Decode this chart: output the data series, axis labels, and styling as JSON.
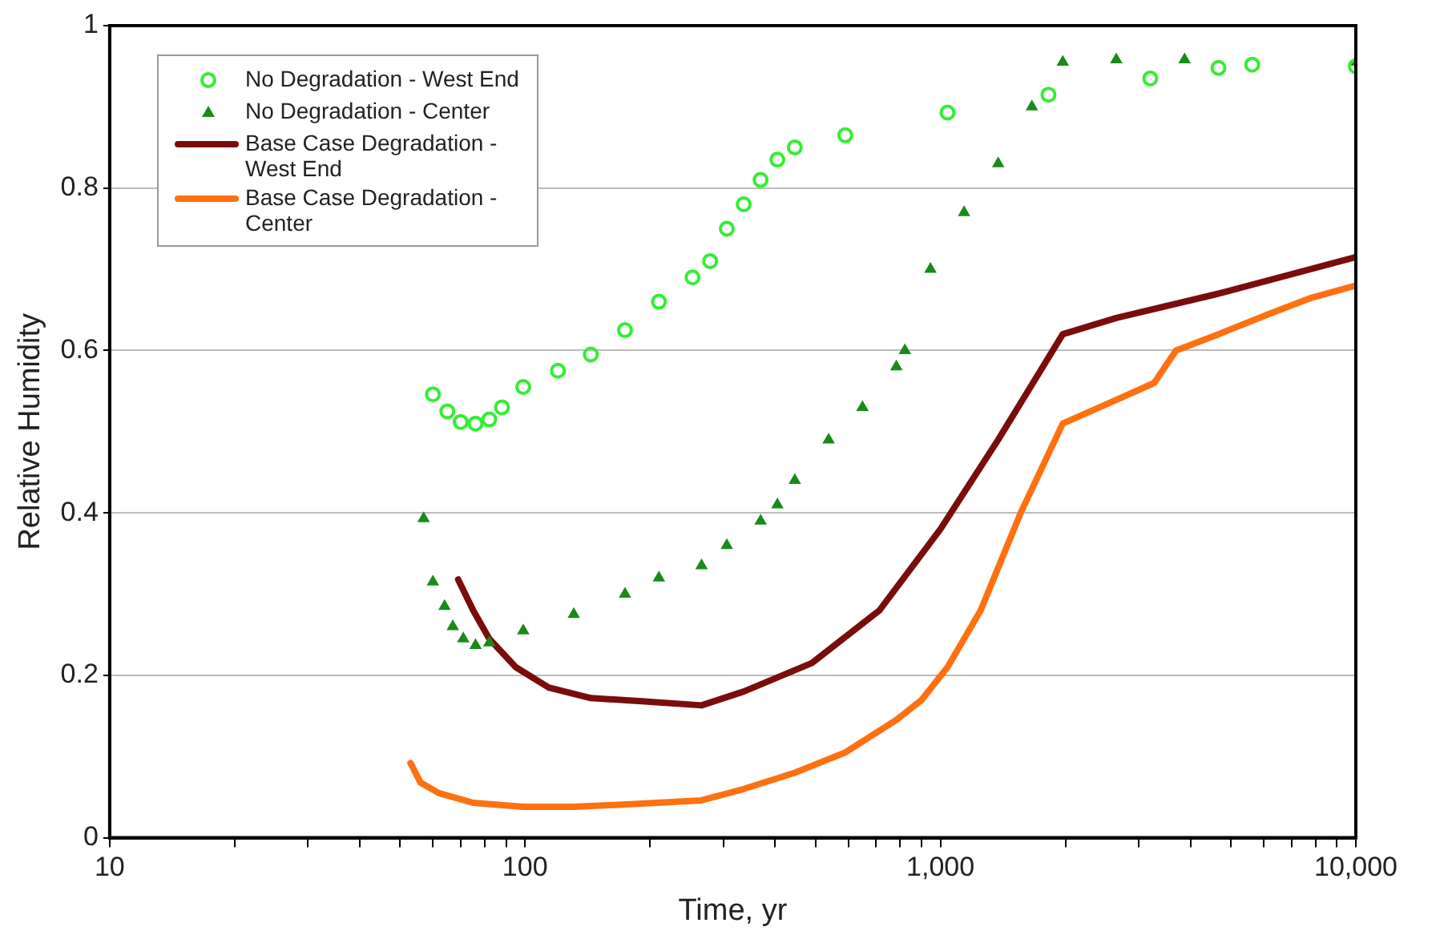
{
  "chart_data": {
    "type": "line",
    "xlabel": "Time, yr",
    "ylabel": "Relative Humidity",
    "log": "x",
    "grid": "y",
    "legend": "top left",
    "xlim": [
      10,
      10000
    ],
    "xticks": [
      10,
      {
        "value": 20,
        "label": null
      },
      {
        "value": 30,
        "label": null
      },
      {
        "value": 40,
        "label": null
      },
      {
        "value": 50,
        "label": null
      },
      {
        "value": 60,
        "label": null
      },
      {
        "value": 70,
        "label": null
      },
      {
        "value": 80,
        "label": null
      },
      {
        "value": 90,
        "label": null
      },
      100,
      {
        "value": 200,
        "label": null
      },
      {
        "value": 300,
        "label": null
      },
      {
        "value": 400,
        "label": null
      },
      {
        "value": 500,
        "label": null
      },
      {
        "value": 600,
        "label": null
      },
      {
        "value": 700,
        "label": null
      },
      {
        "value": 800,
        "label": null
      },
      {
        "value": 900,
        "label": null
      },
      {
        "value": 1000,
        "label": "1,000"
      },
      {
        "value": 2000,
        "label": null
      },
      {
        "value": 3000,
        "label": null
      },
      {
        "value": 4000,
        "label": null
      },
      {
        "value": 5000,
        "label": null
      },
      {
        "value": 6000,
        "label": null
      },
      {
        "value": 7000,
        "label": null
      },
      {
        "value": 8000,
        "label": null
      },
      {
        "value": 9000,
        "label": null
      },
      {
        "value": 10000,
        "label": "10,000"
      }
    ],
    "ylim": [
      0,
      1
    ],
    "yticks": [
      0,
      0.2,
      0.4,
      0.6,
      0.8,
      1
    ],
    "series": [
      {
        "name": "No Degradation - West End",
        "type": "scatter",
        "marker": "circle",
        "color": "#33ee33",
        "x": [
          60,
          65,
          70,
          76,
          82,
          88,
          99,
          120,
          144,
          174,
          210,
          253,
          279,
          306,
          336,
          369,
          405,
          446,
          590,
          1040,
          1820,
          3200,
          4670,
          5630,
          10000
        ],
        "values": [
          0.546,
          0.525,
          0.512,
          0.51,
          0.515,
          0.53,
          0.555,
          0.575,
          0.595,
          0.625,
          0.66,
          0.69,
          0.71,
          0.75,
          0.78,
          0.81,
          0.835,
          0.85,
          0.865,
          0.893,
          0.915,
          0.935,
          0.948,
          0.952,
          0.95
        ]
      },
      {
        "name": "No Degradation - Center",
        "type": "scatter",
        "marker": "triangle",
        "color": "#1a8a1a",
        "x": [
          57,
          60,
          64,
          67,
          71,
          76,
          82,
          99,
          131,
          174,
          210,
          266,
          306,
          369,
          405,
          446,
          538,
          649,
          783,
          821,
          946,
          1140,
          1377,
          1660,
          1970,
          2650,
          3870,
          10000
        ],
        "values": [
          0.393,
          0.315,
          0.285,
          0.26,
          0.245,
          0.237,
          0.24,
          0.255,
          0.275,
          0.3,
          0.32,
          0.335,
          0.36,
          0.39,
          0.41,
          0.44,
          0.49,
          0.53,
          0.58,
          0.6,
          0.7,
          0.77,
          0.83,
          0.9,
          0.955,
          0.958,
          0.958,
          0.955
        ]
      },
      {
        "name": "Base Case Degradation - West End",
        "type": "line",
        "marker": "none",
        "color": "#7a0c0c",
        "x": [
          69,
          75,
          82,
          95,
          114,
          144,
          191,
          266,
          336,
          490,
          713,
          1000,
          1377,
          1970,
          2650,
          4670,
          10000
        ],
        "values": [
          0.318,
          0.28,
          0.245,
          0.21,
          0.185,
          0.172,
          0.168,
          0.163,
          0.18,
          0.215,
          0.28,
          0.38,
          0.49,
          0.62,
          0.64,
          0.67,
          0.715
        ]
      },
      {
        "name": "Base Case Degradation - Center",
        "type": "line",
        "marker": "none",
        "color": "#ff7010",
        "x": [
          53,
          56,
          62,
          75,
          99,
          131,
          191,
          266,
          336,
          446,
          590,
          783,
          902,
          1040,
          1250,
          1560,
          1970,
          2540,
          3270,
          3690,
          4670,
          6190,
          7830,
          10000
        ],
        "values": [
          0.092,
          0.068,
          0.055,
          0.043,
          0.038,
          0.038,
          0.042,
          0.046,
          0.06,
          0.08,
          0.105,
          0.145,
          0.17,
          0.21,
          0.28,
          0.4,
          0.51,
          0.535,
          0.56,
          0.6,
          0.62,
          0.645,
          0.665,
          0.68
        ]
      }
    ]
  }
}
